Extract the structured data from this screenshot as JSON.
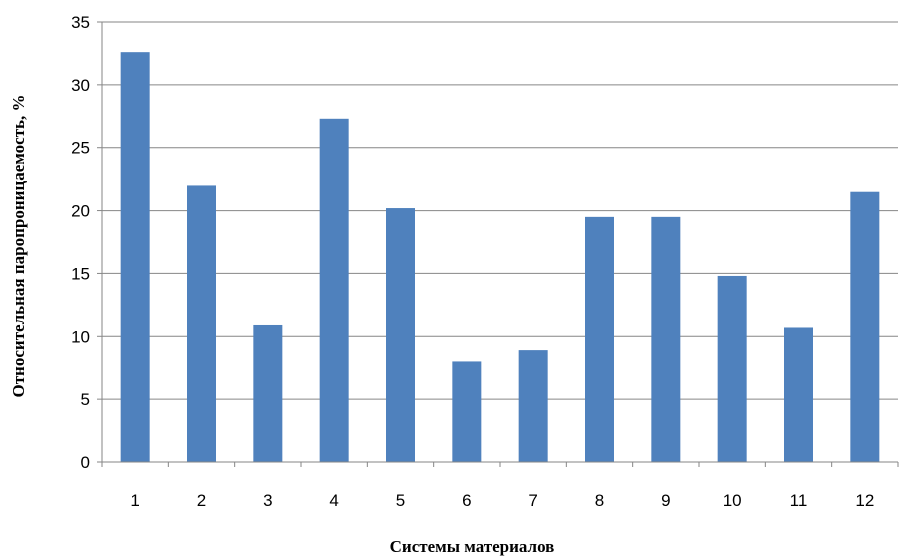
{
  "chart_data": {
    "type": "bar",
    "title": "",
    "xlabel": "Системы материалов",
    "ylabel": "Относительная  паропроницаемость, %",
    "categories": [
      "1",
      "2",
      "3",
      "4",
      "5",
      "6",
      "7",
      "8",
      "9",
      "10",
      "11",
      "12"
    ],
    "values": [
      32.6,
      22.0,
      10.9,
      27.3,
      20.2,
      8.0,
      8.9,
      19.5,
      19.5,
      14.8,
      10.7,
      21.5
    ],
    "ylim": [
      0,
      35
    ],
    "yticks": [
      "0",
      "5",
      "10",
      "15",
      "20",
      "25",
      "30",
      "35"
    ],
    "grid": true,
    "legend": "none",
    "colors": {
      "bar": "#4F81BD",
      "grid": "#868686",
      "axis": "#868686"
    }
  }
}
